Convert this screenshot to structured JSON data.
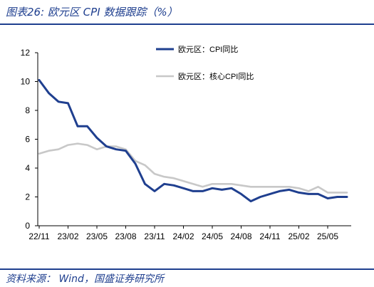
{
  "title": "图表26:  欧元区 CPI 数据跟踪（%）",
  "source": "资料来源： Wind，国盛证券研究所",
  "chart_data": {
    "type": "line",
    "x_tick_labels": [
      "22/11",
      "23/02",
      "23/05",
      "23/08",
      "23/11",
      "24/02",
      "24/05",
      "24/08",
      "24/11",
      "25/02",
      "25/05"
    ],
    "ylim": [
      0,
      12
    ],
    "y_ticks": [
      0,
      2,
      4,
      6,
      8,
      10,
      12
    ],
    "grid": false,
    "legend_position": "top-right",
    "series": [
      {
        "name": "欧元区：CPI同比",
        "color": "#1f3f8f",
        "values": [
          10.1,
          9.2,
          8.6,
          8.5,
          6.9,
          6.9,
          6.1,
          5.5,
          5.3,
          5.2,
          4.3,
          2.9,
          2.4,
          2.9,
          2.8,
          2.6,
          2.4,
          2.4,
          2.6,
          2.5,
          2.6,
          2.2,
          1.7,
          2.0,
          2.2,
          2.4,
          2.5,
          2.3,
          2.2,
          2.2,
          1.9,
          2.0,
          2.0
        ]
      },
      {
        "name": "欧元区：核心CPI同比",
        "color": "#c8c8c8",
        "values": [
          5.0,
          5.2,
          5.3,
          5.6,
          5.7,
          5.6,
          5.3,
          5.5,
          5.5,
          5.3,
          4.5,
          4.2,
          3.6,
          3.4,
          3.3,
          3.1,
          2.9,
          2.7,
          2.9,
          2.9,
          2.9,
          2.8,
          2.7,
          2.7,
          2.7,
          2.7,
          2.7,
          2.6,
          2.4,
          2.7,
          2.3,
          2.3,
          2.3
        ]
      }
    ]
  }
}
